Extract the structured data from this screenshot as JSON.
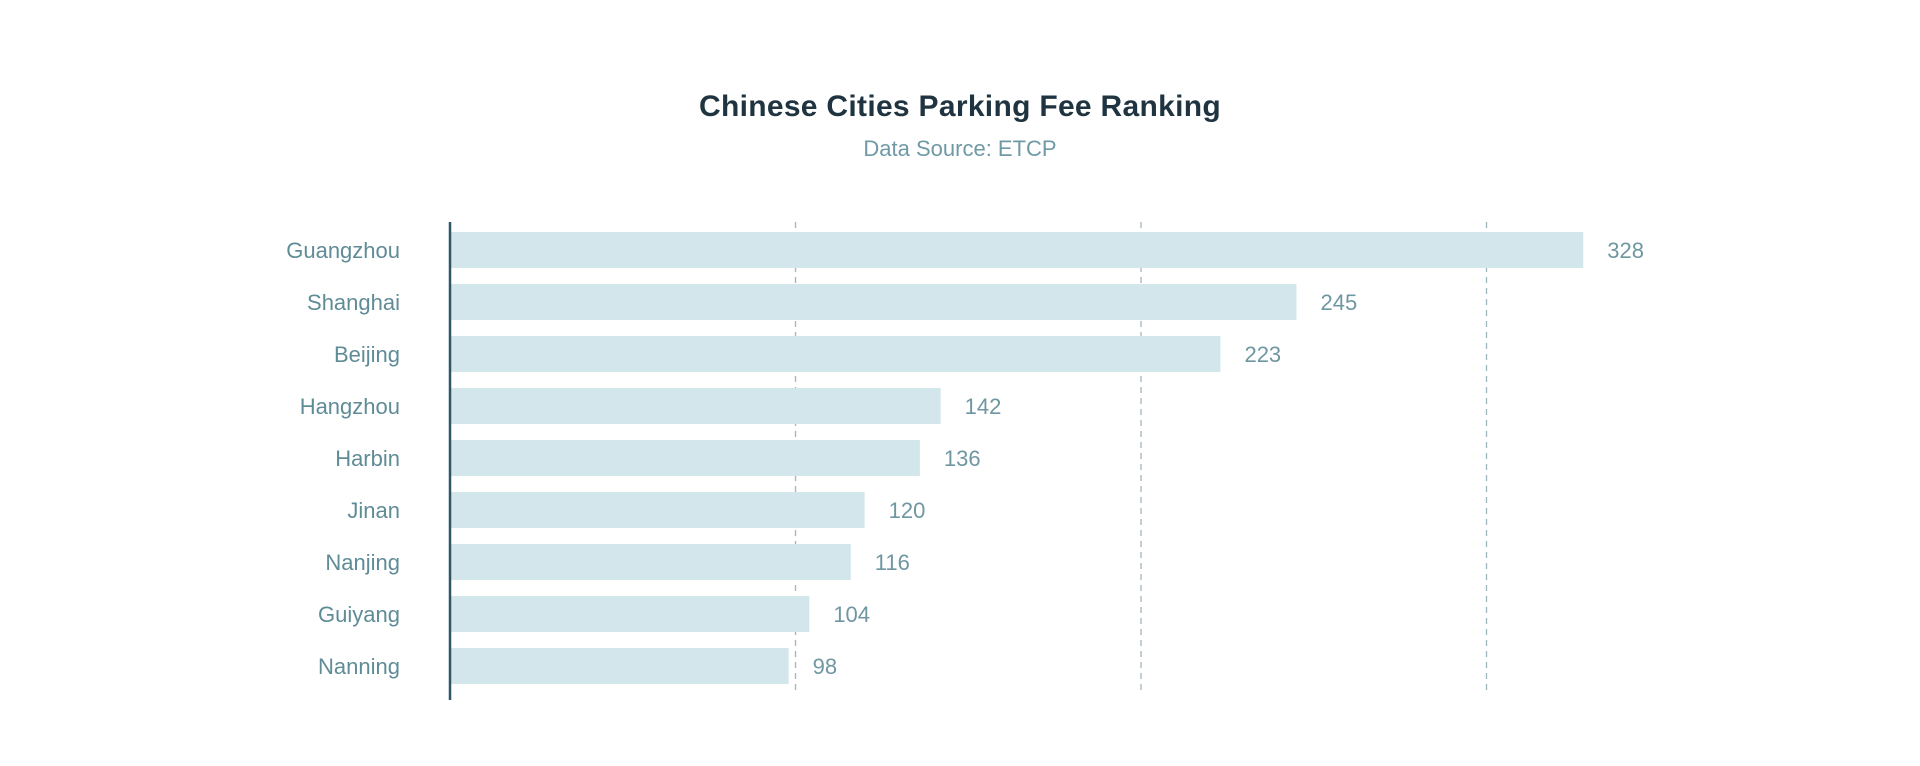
{
  "colors": {
    "bar": "#d2e6ec",
    "axis": "#2f5569",
    "grid": "#9fb6be",
    "title": "#1f3440",
    "subtitle": "#6f9aa5",
    "category_text": "#5f8c96",
    "value_text": "#6f97a1"
  },
  "chart_data": {
    "type": "bar",
    "orientation": "horizontal",
    "title": "Chinese Cities Parking Fee Ranking",
    "subtitle": "Data Source: ETCP",
    "categories": [
      "Guangzhou",
      "Shanghai",
      "Beijing",
      "Hangzhou",
      "Harbin",
      "Jinan",
      "Nanjing",
      "Guiyang",
      "Nanning"
    ],
    "values": [
      328,
      245,
      223,
      142,
      136,
      120,
      116,
      104,
      98
    ],
    "xlim": [
      0,
      330
    ],
    "gridlines": [
      100,
      200,
      300
    ],
    "grid_style": "dashed vertical",
    "value_labels": true,
    "legend": "none"
  }
}
